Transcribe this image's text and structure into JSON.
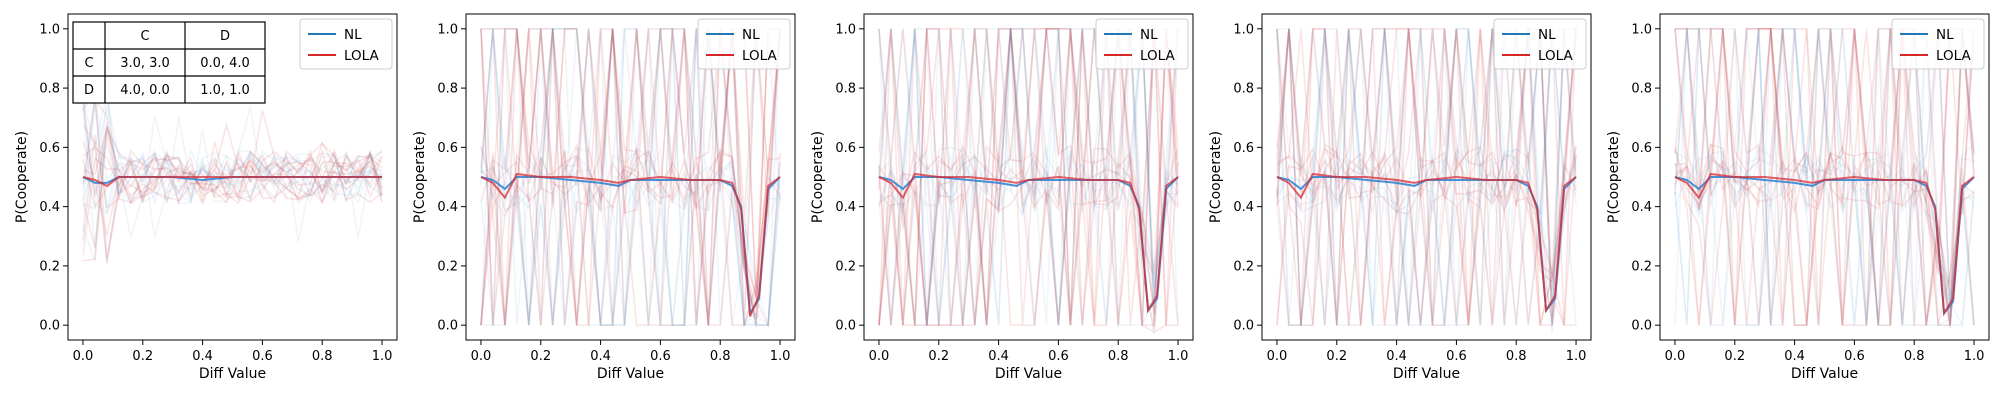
{
  "colors": {
    "NL": "#1f77b4",
    "LOLA": "#d62728",
    "NL_mean": "#2a7fd0",
    "LOLA_mean": "#d62d36",
    "frame": "#000000"
  },
  "chart_data": [
    {
      "type": "line",
      "xlabel": "Diff Value",
      "ylabel": "P(Cooperate)",
      "xlim": [
        -0.05,
        1.05
      ],
      "ylim": [
        -0.05,
        1.05
      ],
      "xticks": [
        "0.0",
        "0.2",
        "0.4",
        "0.6",
        "0.8",
        "1.0"
      ],
      "yticks": [
        "0.0",
        "0.2",
        "0.4",
        "0.6",
        "0.8",
        "1.0"
      ],
      "legend": {
        "position": "top-right",
        "entries": [
          "NL",
          "LOLA"
        ]
      },
      "series": [
        {
          "name": "NL",
          "x": [
            0.0,
            0.04,
            0.08,
            0.12,
            0.2,
            0.3,
            0.4,
            0.5,
            0.6,
            0.7,
            0.8,
            0.9,
            1.0
          ],
          "values": [
            0.5,
            0.48,
            0.48,
            0.5,
            0.5,
            0.5,
            0.49,
            0.5,
            0.5,
            0.5,
            0.5,
            0.5,
            0.5
          ]
        },
        {
          "name": "LOLA",
          "x": [
            0.0,
            0.04,
            0.08,
            0.12,
            0.2,
            0.3,
            0.4,
            0.5,
            0.6,
            0.7,
            0.8,
            0.9,
            1.0
          ],
          "values": [
            0.5,
            0.49,
            0.47,
            0.5,
            0.5,
            0.5,
            0.5,
            0.5,
            0.5,
            0.5,
            0.5,
            0.5,
            0.5
          ]
        }
      ],
      "payoff_table": {
        "col_headers": [
          "C",
          "D"
        ],
        "rows": [
          {
            "label": "C",
            "cells": [
              "3.0, 3.0",
              "0.0, 4.0"
            ]
          },
          {
            "label": "D",
            "cells": [
              "4.0, 0.0",
              "1.0, 1.0"
            ]
          }
        ]
      },
      "noise": "low"
    },
    {
      "type": "line",
      "xlabel": "Diff Value",
      "ylabel": "P(Cooperate)",
      "xlim": [
        -0.05,
        1.05
      ],
      "ylim": [
        -0.05,
        1.05
      ],
      "xticks": [
        "0.0",
        "0.2",
        "0.4",
        "0.6",
        "0.8",
        "1.0"
      ],
      "yticks": [
        "0.0",
        "0.2",
        "0.4",
        "0.6",
        "0.8",
        "1.0"
      ],
      "legend": {
        "position": "top-right",
        "entries": [
          "NL",
          "LOLA"
        ]
      },
      "series": [
        {
          "name": "NL",
          "x": [
            0.0,
            0.04,
            0.08,
            0.12,
            0.2,
            0.3,
            0.4,
            0.46,
            0.5,
            0.6,
            0.7,
            0.8,
            0.84,
            0.87,
            0.9,
            0.93,
            0.96,
            1.0
          ],
          "values": [
            0.5,
            0.49,
            0.46,
            0.5,
            0.5,
            0.49,
            0.48,
            0.47,
            0.49,
            0.49,
            0.49,
            0.49,
            0.47,
            0.4,
            0.04,
            0.09,
            0.46,
            0.5
          ]
        },
        {
          "name": "LOLA",
          "x": [
            0.0,
            0.04,
            0.08,
            0.12,
            0.2,
            0.3,
            0.4,
            0.46,
            0.5,
            0.6,
            0.7,
            0.8,
            0.84,
            0.87,
            0.9,
            0.93,
            0.96,
            1.0
          ],
          "values": [
            0.5,
            0.48,
            0.43,
            0.51,
            0.5,
            0.5,
            0.49,
            0.48,
            0.49,
            0.5,
            0.49,
            0.49,
            0.48,
            0.39,
            0.03,
            0.1,
            0.47,
            0.5
          ]
        }
      ],
      "noise": "high"
    },
    {
      "type": "line",
      "xlabel": "Diff Value",
      "ylabel": "P(Cooperate)",
      "xlim": [
        -0.05,
        1.05
      ],
      "ylim": [
        -0.05,
        1.05
      ],
      "xticks": [
        "0.0",
        "0.2",
        "0.4",
        "0.6",
        "0.8",
        "1.0"
      ],
      "yticks": [
        "0.0",
        "0.2",
        "0.4",
        "0.6",
        "0.8",
        "1.0"
      ],
      "legend": {
        "position": "top-right",
        "entries": [
          "NL",
          "LOLA"
        ]
      },
      "series": [
        {
          "name": "NL",
          "x": [
            0.0,
            0.04,
            0.08,
            0.12,
            0.2,
            0.3,
            0.4,
            0.46,
            0.5,
            0.6,
            0.7,
            0.8,
            0.84,
            0.87,
            0.9,
            0.93,
            0.96,
            1.0
          ],
          "values": [
            0.5,
            0.49,
            0.46,
            0.5,
            0.5,
            0.49,
            0.48,
            0.47,
            0.49,
            0.49,
            0.49,
            0.49,
            0.47,
            0.4,
            0.05,
            0.09,
            0.46,
            0.5
          ]
        },
        {
          "name": "LOLA",
          "x": [
            0.0,
            0.04,
            0.08,
            0.12,
            0.2,
            0.3,
            0.4,
            0.46,
            0.5,
            0.6,
            0.7,
            0.8,
            0.84,
            0.87,
            0.9,
            0.93,
            0.96,
            1.0
          ],
          "values": [
            0.5,
            0.48,
            0.43,
            0.51,
            0.5,
            0.5,
            0.49,
            0.48,
            0.49,
            0.5,
            0.49,
            0.49,
            0.48,
            0.39,
            0.05,
            0.1,
            0.47,
            0.5
          ]
        }
      ],
      "noise": "high"
    },
    {
      "type": "line",
      "xlabel": "Diff Value",
      "ylabel": "P(Cooperate)",
      "xlim": [
        -0.05,
        1.05
      ],
      "ylim": [
        -0.05,
        1.05
      ],
      "xticks": [
        "0.0",
        "0.2",
        "0.4",
        "0.6",
        "0.8",
        "1.0"
      ],
      "yticks": [
        "0.0",
        "0.2",
        "0.4",
        "0.6",
        "0.8",
        "1.0"
      ],
      "legend": {
        "position": "top-right",
        "entries": [
          "NL",
          "LOLA"
        ]
      },
      "series": [
        {
          "name": "NL",
          "x": [
            0.0,
            0.04,
            0.08,
            0.12,
            0.2,
            0.3,
            0.4,
            0.46,
            0.5,
            0.6,
            0.7,
            0.8,
            0.84,
            0.87,
            0.9,
            0.93,
            0.96,
            1.0
          ],
          "values": [
            0.5,
            0.49,
            0.46,
            0.5,
            0.5,
            0.49,
            0.48,
            0.47,
            0.49,
            0.49,
            0.49,
            0.49,
            0.47,
            0.4,
            0.05,
            0.09,
            0.46,
            0.5
          ]
        },
        {
          "name": "LOLA",
          "x": [
            0.0,
            0.04,
            0.08,
            0.12,
            0.2,
            0.3,
            0.4,
            0.46,
            0.5,
            0.6,
            0.7,
            0.8,
            0.84,
            0.87,
            0.9,
            0.93,
            0.96,
            1.0
          ],
          "values": [
            0.5,
            0.48,
            0.43,
            0.51,
            0.5,
            0.5,
            0.49,
            0.48,
            0.49,
            0.5,
            0.49,
            0.49,
            0.48,
            0.39,
            0.05,
            0.1,
            0.47,
            0.5
          ]
        }
      ],
      "noise": "high"
    },
    {
      "type": "line",
      "xlabel": "Diff Value",
      "ylabel": "P(Cooperate)",
      "xlim": [
        -0.05,
        1.05
      ],
      "ylim": [
        -0.05,
        1.05
      ],
      "xticks": [
        "0.0",
        "0.2",
        "0.4",
        "0.6",
        "0.8",
        "1.0"
      ],
      "yticks": [
        "0.0",
        "0.2",
        "0.4",
        "0.6",
        "0.8",
        "1.0"
      ],
      "legend": {
        "position": "top-right",
        "entries": [
          "NL",
          "LOLA"
        ]
      },
      "series": [
        {
          "name": "NL",
          "x": [
            0.0,
            0.04,
            0.08,
            0.12,
            0.2,
            0.3,
            0.4,
            0.46,
            0.5,
            0.6,
            0.7,
            0.8,
            0.84,
            0.87,
            0.9,
            0.93,
            0.96,
            1.0
          ],
          "values": [
            0.5,
            0.49,
            0.46,
            0.5,
            0.5,
            0.49,
            0.48,
            0.47,
            0.49,
            0.49,
            0.49,
            0.49,
            0.47,
            0.4,
            0.04,
            0.08,
            0.46,
            0.5
          ]
        },
        {
          "name": "LOLA",
          "x": [
            0.0,
            0.04,
            0.08,
            0.12,
            0.2,
            0.3,
            0.4,
            0.46,
            0.5,
            0.6,
            0.7,
            0.8,
            0.84,
            0.87,
            0.9,
            0.93,
            0.96,
            1.0
          ],
          "values": [
            0.5,
            0.48,
            0.43,
            0.51,
            0.5,
            0.5,
            0.49,
            0.48,
            0.49,
            0.5,
            0.49,
            0.49,
            0.48,
            0.39,
            0.04,
            0.09,
            0.47,
            0.5
          ]
        }
      ],
      "noise": "high"
    }
  ]
}
